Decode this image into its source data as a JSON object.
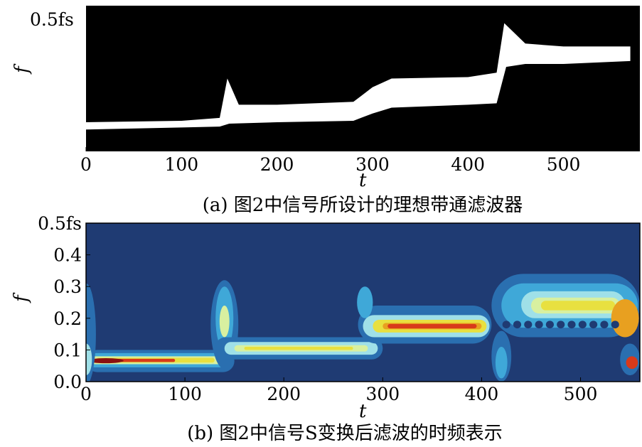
{
  "chart_data": [
    {
      "panel": "a",
      "type": "heatmap",
      "title": "(a) 图2中信号所设计的理想带通滤波器",
      "xlabel": "t",
      "ylabel": "f",
      "xlim": [
        0,
        580
      ],
      "xticks": [
        0,
        100,
        200,
        300,
        400,
        500
      ],
      "ytick_top": "0.5fs",
      "colors": {
        "background": "#000000",
        "passband": "#ffffff"
      },
      "passband_lower": [
        [
          0,
          0.075
        ],
        [
          100,
          0.082
        ],
        [
          140,
          0.085
        ],
        [
          150,
          0.095
        ],
        [
          200,
          0.1
        ],
        [
          280,
          0.105
        ],
        [
          300,
          0.13
        ],
        [
          320,
          0.15
        ],
        [
          400,
          0.16
        ],
        [
          430,
          0.165
        ],
        [
          440,
          0.29
        ],
        [
          460,
          0.3
        ],
        [
          500,
          0.3
        ],
        [
          570,
          0.31
        ]
      ],
      "passband_upper": [
        [
          0,
          0.1
        ],
        [
          100,
          0.105
        ],
        [
          140,
          0.115
        ],
        [
          148,
          0.25
        ],
        [
          160,
          0.16
        ],
        [
          200,
          0.16
        ],
        [
          280,
          0.17
        ],
        [
          300,
          0.22
        ],
        [
          320,
          0.25
        ],
        [
          400,
          0.255
        ],
        [
          430,
          0.27
        ],
        [
          438,
          0.44
        ],
        [
          460,
          0.37
        ],
        [
          500,
          0.36
        ],
        [
          570,
          0.36
        ]
      ]
    },
    {
      "panel": "b",
      "type": "heatmap",
      "title": "(b) 图2中信号S变换后滤波的时频表示",
      "xlabel": "t",
      "ylabel": "f",
      "xlim": [
        0,
        560
      ],
      "ylim": [
        0,
        0.5
      ],
      "xticks": [
        0,
        100,
        200,
        300,
        400,
        500
      ],
      "yticks": [
        "0.0",
        "0.1",
        "0.2",
        "0.3",
        "0.4",
        "0.5fs"
      ],
      "colormap": [
        "#1f3b73",
        "#2a6fb0",
        "#3fa8d8",
        "#9fe0e8",
        "#d8f0a0",
        "#e8e040",
        "#e8a020",
        "#d83a1a",
        "#8a1010"
      ]
    }
  ]
}
